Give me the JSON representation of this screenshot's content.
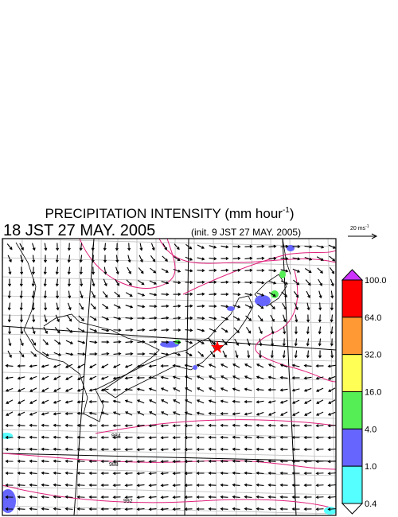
{
  "header": {
    "title": {
      "text": "PRECIPITATION INTENSITY (mm hour",
      "superscript": "-1",
      "close": ")"
    },
    "time": "18 JST 27 MAY. 2005",
    "init": "(init. 9 JST 27 MAY. 2005)"
  },
  "vector_legend": {
    "text": "20 ms",
    "superscript": "-1"
  },
  "colorbar": {
    "labels": [
      "100.0",
      "64.0",
      "32.0",
      "16.0",
      "4.0",
      "1.0",
      "0.4"
    ],
    "over_color": "#cc33ff",
    "colors": [
      "#ff0000",
      "#ff9933",
      "#ffff55",
      "#55ee55",
      "#6666ff",
      "#55ffff"
    ],
    "under_color": "#ffffff"
  },
  "isobars": {
    "labels": [
      "984",
      "988",
      "992"
    ]
  }
}
